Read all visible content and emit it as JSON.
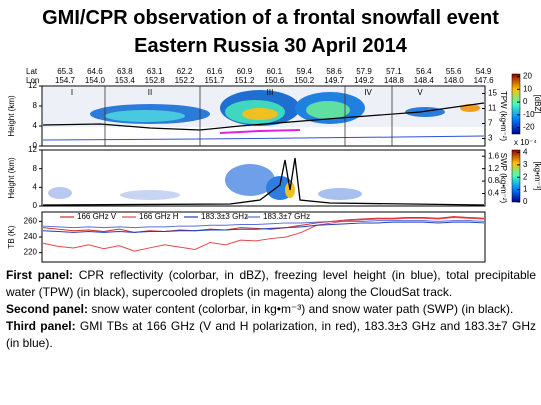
{
  "header": {
    "title": "GMI/CPR observation of a frontal snowfall event",
    "subtitle": "Eastern Russia 30 April  2014"
  },
  "figure": {
    "lat_label": "Lat",
    "lon_label": "Lon",
    "lat": [
      "65.3",
      "64.6",
      "63.8",
      "63.1",
      "62.2",
      "61.6",
      "60.9",
      "60.1",
      "59.4",
      "58.6",
      "57.9",
      "57.1",
      "56.4",
      "55.6",
      "54.9"
    ],
    "lon": [
      "154.7",
      "154.0",
      "153.4",
      "152.8",
      "152.2",
      "151.7",
      "151.2",
      "150.6",
      "150.2",
      "149.7",
      "149.2",
      "148.8",
      "148.4",
      "148.0",
      "147.6"
    ],
    "panel1": {
      "ylabel": "Height (km)",
      "ylim": [
        0,
        12
      ],
      "yticks": [
        0,
        4,
        8,
        12
      ],
      "y2label": "TPW (kg•m⁻²)",
      "y2lim": [
        1,
        17
      ],
      "y2ticks": [
        3,
        7,
        11,
        15
      ],
      "colorbar_label": "[dBZ]",
      "colorbar_lim": [
        -25,
        22
      ],
      "colorbar_ticks": [
        -20,
        -10,
        0,
        10,
        20
      ],
      "regions": [
        "I",
        "II",
        "III",
        "IV",
        "V"
      ]
    },
    "panel2": {
      "ylabel": "Height (km)",
      "ylim": [
        0,
        12
      ],
      "yticks": [
        0,
        4,
        8,
        12
      ],
      "y2label": "SWP (kg•m⁻²)",
      "y2lim": [
        0,
        1.8
      ],
      "y2ticks": [
        0.4,
        0.8,
        1.2,
        1.6
      ],
      "colorbar_label": "[kg•m⁻³]",
      "colorbar_scale": "x 10⁻⁴",
      "colorbar_lim": [
        0,
        4.2
      ],
      "colorbar_ticks": [
        0,
        1,
        2,
        3,
        4
      ]
    },
    "panel3": {
      "type": "line",
      "ylabel": "TB (K)",
      "ylim": [
        208,
        272
      ],
      "yticks": [
        220,
        240,
        260
      ],
      "series": [
        {
          "name": "166 GHz V",
          "color": "#d62728",
          "values": [
            252,
            250,
            248,
            249,
            247,
            250,
            246,
            248,
            247,
            249,
            248,
            250,
            249,
            252,
            251,
            250,
            252,
            255,
            258,
            260,
            262,
            263,
            264,
            264,
            265,
            265,
            264,
            266,
            265,
            264
          ]
        },
        {
          "name": "166 GHz H",
          "color": "#e8474a",
          "values": [
            232,
            228,
            226,
            230,
            225,
            229,
            222,
            226,
            230,
            227,
            224,
            233,
            230,
            236,
            235,
            238,
            240,
            246,
            255,
            258,
            261,
            262,
            263,
            263,
            264,
            264,
            263,
            265,
            264,
            263
          ]
        },
        {
          "name": "183.3±3 GHz",
          "color": "#1f3fbf",
          "values": [
            248,
            247,
            246,
            247,
            246,
            247,
            246,
            247,
            247,
            248,
            248,
            249,
            249,
            250,
            250,
            251,
            252,
            253,
            255,
            256,
            257,
            258,
            258,
            259,
            259,
            259,
            258,
            259,
            259,
            258
          ]
        },
        {
          "name": "183.3±7 GHz",
          "color": "#5a6fd6",
          "values": [
            254,
            253,
            252,
            253,
            252,
            253,
            252,
            253,
            253,
            254,
            254,
            255,
            255,
            256,
            256,
            257,
            258,
            258,
            259,
            260,
            260,
            260,
            261,
            261,
            261,
            261,
            260,
            261,
            261,
            260
          ]
        }
      ]
    }
  },
  "caption": [
    {
      "label": "First panel:",
      "text": " CPR reflectivity (colorbar, in dBZ), freezing level height (in blue), total precipitable water (TPW) (in black), supercooled droplets (in magenta) along the CloudSat track."
    },
    {
      "label": "Second panel:",
      "text": " snow water content (colorbar, in kg•m⁻³) and snow water path (SWP) (in black)."
    },
    {
      "label": "Third panel:",
      "text": " GMI TBs at 166 GHz (V and H polarization, in red), 183.3±3 GHz and 183.3±7 GHz (in blue)."
    }
  ]
}
